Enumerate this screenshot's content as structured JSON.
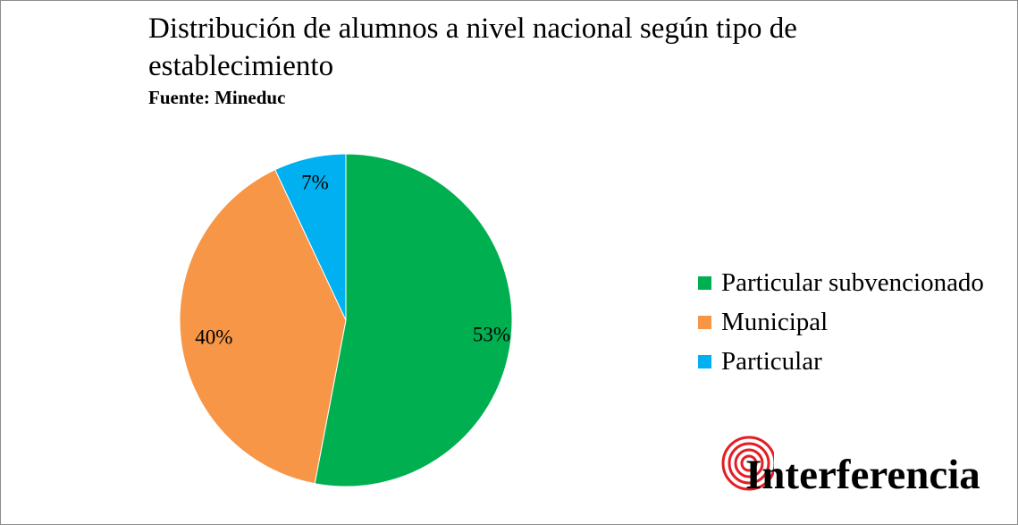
{
  "chart_data": {
    "type": "pie",
    "title": "Distribución de alumnos a nivel nacional según tipo de establecimiento",
    "subtitle": "Fuente: Mineduc",
    "slices": [
      {
        "label": "Particular subvencionado",
        "value": 53,
        "display": "53%",
        "color": "#00b050"
      },
      {
        "label": "Municipal",
        "value": 40,
        "display": "40%",
        "color": "#f79646"
      },
      {
        "label": "Particular",
        "value": 7,
        "display": "7%",
        "color": "#00b0f0"
      }
    ],
    "legend_position": "right"
  },
  "logo": {
    "text": "Interferencia",
    "ring_color": "#e31e24"
  }
}
